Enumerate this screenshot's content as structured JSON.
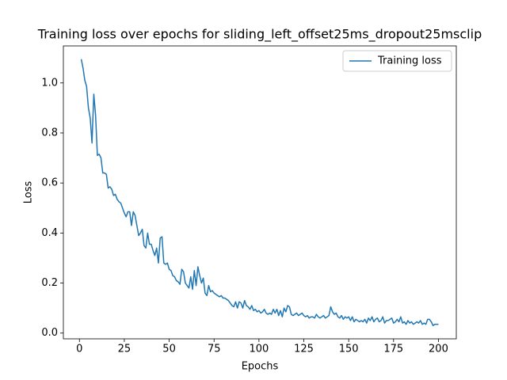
{
  "chart_data": {
    "type": "line",
    "title": "Training loss over epochs for sliding_left_offset25ms_dropout25msclip",
    "x_label": "Epochs",
    "y_label": "Loss",
    "x": [
      1,
      2,
      3,
      4,
      5,
      6,
      7,
      8,
      9,
      10,
      11,
      12,
      13,
      14,
      15,
      16,
      17,
      18,
      19,
      20,
      21,
      22,
      23,
      24,
      25,
      26,
      27,
      28,
      29,
      30,
      31,
      32,
      33,
      34,
      35,
      36,
      37,
      38,
      39,
      40,
      41,
      42,
      43,
      44,
      45,
      46,
      47,
      48,
      49,
      50,
      51,
      52,
      53,
      54,
      55,
      56,
      57,
      58,
      59,
      60,
      61,
      62,
      63,
      64,
      65,
      66,
      67,
      68,
      69,
      70,
      71,
      72,
      73,
      74,
      75,
      76,
      77,
      78,
      79,
      80,
      81,
      82,
      83,
      84,
      85,
      86,
      87,
      88,
      89,
      90,
      91,
      92,
      93,
      94,
      95,
      96,
      97,
      98,
      99,
      100,
      101,
      102,
      103,
      104,
      105,
      106,
      107,
      108,
      109,
      110,
      111,
      112,
      113,
      114,
      115,
      116,
      117,
      118,
      119,
      120,
      121,
      122,
      123,
      124,
      125,
      126,
      127,
      128,
      129,
      130,
      131,
      132,
      133,
      134,
      135,
      136,
      137,
      138,
      139,
      140,
      141,
      142,
      143,
      144,
      145,
      146,
      147,
      148,
      149,
      150,
      151,
      152,
      153,
      154,
      155,
      156,
      157,
      158,
      159,
      160,
      161,
      162,
      163,
      164,
      165,
      166,
      167,
      168,
      169,
      170,
      171,
      172,
      173,
      174,
      175,
      176,
      177,
      178,
      179,
      180,
      181,
      182,
      183,
      184,
      185,
      186,
      187,
      188,
      189,
      190,
      191,
      192,
      193,
      194,
      195,
      196,
      197,
      198,
      199,
      200
    ],
    "series": [
      {
        "name": "Training loss",
        "color": "#1f77b4",
        "values": [
          1.095,
          1.06,
          1.01,
          0.985,
          0.9,
          0.86,
          0.76,
          0.955,
          0.87,
          0.71,
          0.715,
          0.7,
          0.64,
          0.64,
          0.635,
          0.58,
          0.585,
          0.575,
          0.55,
          0.555,
          0.535,
          0.525,
          0.52,
          0.5,
          0.48,
          0.465,
          0.485,
          0.485,
          0.43,
          0.485,
          0.47,
          0.43,
          0.39,
          0.4,
          0.415,
          0.35,
          0.34,
          0.4,
          0.355,
          0.355,
          0.33,
          0.31,
          0.34,
          0.28,
          0.38,
          0.385,
          0.28,
          0.275,
          0.28,
          0.255,
          0.25,
          0.23,
          0.225,
          0.21,
          0.205,
          0.195,
          0.255,
          0.245,
          0.2,
          0.19,
          0.18,
          0.225,
          0.175,
          0.25,
          0.19,
          0.265,
          0.23,
          0.2,
          0.22,
          0.16,
          0.15,
          0.19,
          0.165,
          0.17,
          0.16,
          0.155,
          0.15,
          0.145,
          0.15,
          0.14,
          0.14,
          0.135,
          0.13,
          0.12,
          0.11,
          0.105,
          0.125,
          0.1,
          0.125,
          0.12,
          0.1,
          0.13,
          0.11,
          0.105,
          0.095,
          0.11,
          0.09,
          0.095,
          0.085,
          0.09,
          0.08,
          0.085,
          0.095,
          0.08,
          0.075,
          0.08,
          0.075,
          0.095,
          0.08,
          0.095,
          0.07,
          0.09,
          0.065,
          0.1,
          0.085,
          0.11,
          0.105,
          0.075,
          0.07,
          0.075,
          0.08,
          0.07,
          0.075,
          0.08,
          0.07,
          0.065,
          0.07,
          0.06,
          0.065,
          0.065,
          0.06,
          0.075,
          0.065,
          0.06,
          0.065,
          0.07,
          0.06,
          0.065,
          0.07,
          0.105,
          0.085,
          0.075,
          0.08,
          0.065,
          0.06,
          0.07,
          0.055,
          0.065,
          0.06,
          0.065,
          0.05,
          0.065,
          0.045,
          0.055,
          0.05,
          0.045,
          0.05,
          0.045,
          0.055,
          0.04,
          0.06,
          0.05,
          0.065,
          0.045,
          0.055,
          0.06,
          0.045,
          0.05,
          0.065,
          0.04,
          0.05,
          0.05,
          0.055,
          0.06,
          0.04,
          0.045,
          0.055,
          0.045,
          0.065,
          0.04,
          0.045,
          0.035,
          0.05,
          0.04,
          0.045,
          0.035,
          0.04,
          0.045,
          0.04,
          0.05,
          0.035,
          0.04,
          0.035,
          0.055,
          0.055,
          0.045,
          0.03,
          0.035,
          0.035,
          0.035
        ]
      }
    ],
    "xlim": [
      -8.95,
      209.95
    ],
    "ylim": [
      -0.023,
      1.148
    ],
    "xticks": [
      0,
      25,
      50,
      75,
      100,
      125,
      150,
      175,
      200
    ],
    "yticks": [
      {
        "value": 0,
        "label": "0.0"
      },
      0.2,
      0.4,
      0.6,
      0.8,
      {
        "value": 1,
        "label": "1.0"
      }
    ],
    "legend": "upper right"
  }
}
